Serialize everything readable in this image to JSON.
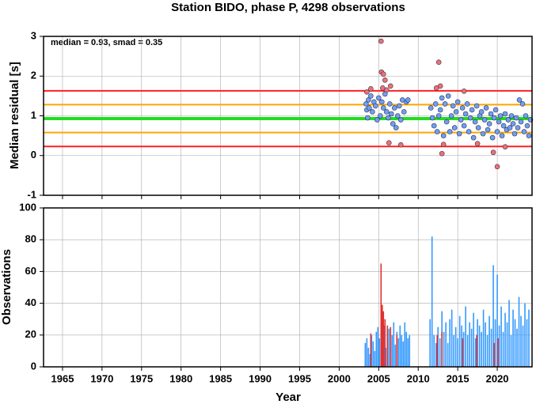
{
  "chart_data": [
    {
      "type": "scatter",
      "title": "Station BIDO, phase P, 4298 observations",
      "ylabel": "Median residual [s]",
      "annotation": "median = 0.93, smad = 0.35",
      "xlim": [
        1962.6,
        2024.4
      ],
      "xticks": [
        1965,
        1970,
        1975,
        1980,
        1985,
        1990,
        1995,
        2000,
        2005,
        2010,
        2015,
        2020
      ],
      "ylim": [
        -1,
        3
      ],
      "yticks": [
        -1,
        0,
        1,
        2,
        3
      ],
      "grid": true,
      "hlines": [
        {
          "value": 1.63,
          "color": "#ff2020"
        },
        {
          "value": 0.23,
          "color": "#ff2020"
        },
        {
          "value": 1.28,
          "color": "#ffa500"
        },
        {
          "value": 0.58,
          "color": "#ffa500"
        },
        {
          "value": 0.93,
          "color": "#22dd22"
        }
      ],
      "series": [
        {
          "color": "#6f9ff0",
          "x": [
            2003.4,
            2003.5,
            2003.6,
            2003.7,
            2003.8,
            2004.0,
            2004.2,
            2004.4,
            2004.6,
            2004.8,
            2005.0,
            2005.2,
            2005.4,
            2005.6,
            2005.8,
            2006.0,
            2006.2,
            2006.4,
            2006.6,
            2006.8,
            2007.0,
            2007.2,
            2007.4,
            2007.6,
            2007.8,
            2008.0,
            2008.2,
            2008.5,
            2008.7,
            2011.6,
            2011.8,
            2012.0,
            2012.2,
            2012.4,
            2012.6,
            2012.8,
            2013.0,
            2013.2,
            2013.4,
            2013.6,
            2013.8,
            2014.0,
            2014.2,
            2014.4,
            2014.6,
            2014.8,
            2015.0,
            2015.2,
            2015.4,
            2015.6,
            2015.8,
            2016.0,
            2016.2,
            2016.4,
            2016.6,
            2016.8,
            2017.0,
            2017.2,
            2017.4,
            2017.6,
            2017.8,
            2018.0,
            2018.2,
            2018.4,
            2018.6,
            2018.8,
            2019.0,
            2019.2,
            2019.4,
            2019.6,
            2019.8,
            2020.0,
            2020.2,
            2020.4,
            2020.6,
            2020.8,
            2021.0,
            2021.2,
            2021.4,
            2021.6,
            2021.8,
            2022.0,
            2022.2,
            2022.4,
            2022.6,
            2022.8,
            2023.0,
            2023.2,
            2023.4,
            2023.6,
            2023.8,
            2024.0,
            2024.2
          ],
          "values": [
            1.3,
            1.15,
            0.95,
            1.4,
            1.2,
            1.5,
            1.1,
            1.35,
            1.25,
            0.9,
            1.45,
            1.0,
            1.35,
            1.2,
            1.55,
            1.1,
            0.95,
            1.3,
            1.05,
            0.8,
            1.2,
            0.7,
            1.0,
            1.25,
            0.9,
            1.4,
            1.1,
            1.35,
            1.4,
            1.2,
            0.95,
            0.75,
            1.3,
            0.6,
            1.0,
            1.15,
            1.45,
            0.5,
            1.3,
            0.85,
            1.5,
            0.6,
            1.0,
            1.25,
            0.7,
            1.1,
            1.35,
            0.55,
            0.9,
            1.2,
            0.75,
            1.05,
            1.3,
            0.6,
            0.95,
            1.15,
            0.45,
            0.85,
            1.25,
            0.7,
            1.0,
            1.1,
            0.55,
            0.9,
            1.2,
            0.65,
            0.8,
            1.05,
            0.45,
            0.95,
            1.15,
            0.6,
            0.85,
            1.0,
            0.5,
            0.75,
            1.05,
            0.65,
            0.9,
            0.7,
            1.0,
            0.8,
            0.55,
            0.95,
            0.7,
            1.4,
            0.85,
            1.3,
            0.6,
            1.0,
            0.75,
            0.5,
            0.9
          ]
        },
        {
          "color": "#f07070",
          "x": [
            2003.5,
            2004.0,
            2005.3,
            2005.35,
            2005.6,
            2005.8,
            2005.5,
            2006.0,
            2006.5,
            2006.3,
            2007.8,
            2012.6,
            2012.3,
            2012.8,
            2013.0,
            2013.2,
            2015.8,
            2017.5,
            2019.5,
            2020.0,
            2021.0
          ],
          "values": [
            1.6,
            1.68,
            2.88,
            2.1,
            2.05,
            1.9,
            1.7,
            1.65,
            1.75,
            0.32,
            0.27,
            2.35,
            1.7,
            1.75,
            0.05,
            0.28,
            1.62,
            0.3,
            0.08,
            -0.28,
            0.22
          ]
        }
      ]
    },
    {
      "type": "bar",
      "ylabel": "Observations",
      "xlabel": "Year",
      "xlim": [
        1962.6,
        2024.4
      ],
      "xticks": [
        1965,
        1970,
        1975,
        1980,
        1985,
        1990,
        1995,
        2000,
        2005,
        2010,
        2015,
        2020
      ],
      "ylim": [
        0,
        100
      ],
      "yticks": [
        0,
        20,
        40,
        60,
        80,
        100
      ],
      "grid": true,
      "series": [
        {
          "color": "#3399ff",
          "x": [
            2003.3,
            2003.5,
            2003.7,
            2003.9,
            2004.1,
            2004.3,
            2004.5,
            2004.7,
            2004.9,
            2005.1,
            2005.3,
            2005.5,
            2005.7,
            2005.9,
            2006.1,
            2006.3,
            2006.5,
            2006.7,
            2006.9,
            2007.1,
            2007.3,
            2007.5,
            2007.7,
            2007.9,
            2008.1,
            2008.3,
            2008.5,
            2008.7,
            2008.9,
            2011.5,
            2011.75,
            2012.0,
            2012.25,
            2012.5,
            2012.75,
            2013.0,
            2013.25,
            2013.5,
            2013.75,
            2014.0,
            2014.25,
            2014.5,
            2014.75,
            2015.0,
            2015.25,
            2015.5,
            2015.75,
            2016.0,
            2016.25,
            2016.5,
            2016.75,
            2017.0,
            2017.25,
            2017.5,
            2017.75,
            2018.0,
            2018.25,
            2018.5,
            2018.75,
            2019.0,
            2019.25,
            2019.5,
            2019.75,
            2020.0,
            2020.25,
            2020.5,
            2020.75,
            2021.0,
            2021.25,
            2021.5,
            2021.75,
            2022.0,
            2022.25,
            2022.5,
            2022.75,
            2023.0,
            2023.25,
            2023.5,
            2023.75,
            2024.0
          ],
          "values": [
            15,
            18,
            12,
            8,
            20,
            16,
            10,
            22,
            25,
            18,
            14,
            20,
            26,
            12,
            18,
            24,
            16,
            20,
            28,
            14,
            22,
            18,
            26,
            20,
            16,
            28,
            22,
            18,
            20,
            30,
            82,
            20,
            15,
            25,
            18,
            35,
            22,
            28,
            15,
            30,
            36,
            20,
            25,
            18,
            32,
            26,
            22,
            38,
            20,
            28,
            24,
            34,
            18,
            30,
            26,
            22,
            36,
            28,
            20,
            32,
            24,
            64,
            30,
            58,
            26,
            38,
            22,
            34,
            28,
            42,
            20,
            36,
            30,
            24,
            44,
            32,
            26,
            40,
            30,
            36
          ]
        },
        {
          "color": "#e03030",
          "x": [
            2004.0,
            2005.3,
            2005.45,
            2005.6,
            2005.8,
            2006.1,
            2006.5,
            2007.3,
            2012.4,
            2013.0,
            2015.6,
            2017.4,
            2019.6,
            2020.1
          ],
          "values": [
            21,
            65,
            39,
            35,
            30,
            26,
            25,
            20,
            20,
            22,
            18,
            20,
            15,
            18
          ]
        }
      ]
    }
  ]
}
